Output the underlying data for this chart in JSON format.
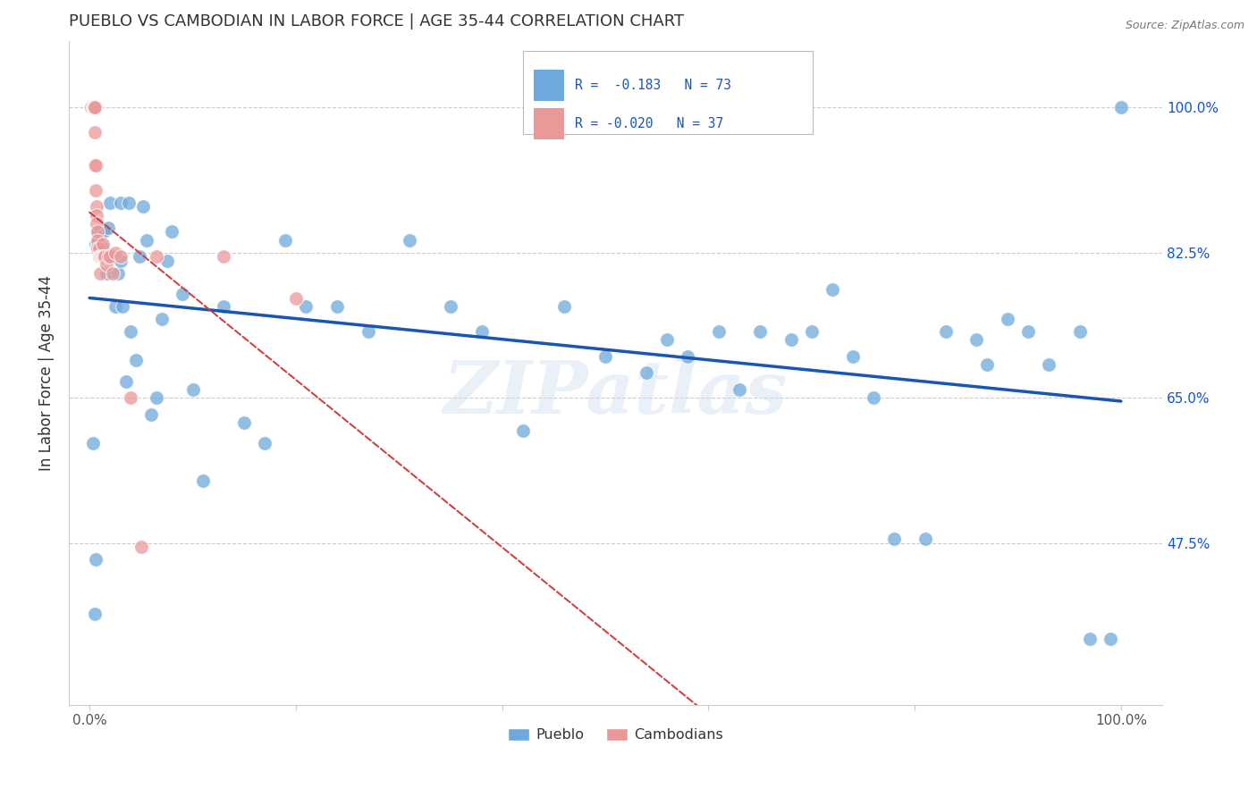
{
  "title": "PUEBLO VS CAMBODIAN IN LABOR FORCE | AGE 35-44 CORRELATION CHART",
  "source": "Source: ZipAtlas.com",
  "ylabel": "In Labor Force | Age 35-44",
  "legend_blue_label": "Pueblo",
  "legend_pink_label": "Cambodians",
  "blue_color": "#6fa8dc",
  "pink_color": "#ea9999",
  "trend_blue_color": "#1a56b0",
  "trend_pink_color": "#cc4444",
  "watermark": "ZIPatlas",
  "blue_x": [
    0.003,
    0.005,
    0.006,
    0.006,
    0.008,
    0.008,
    0.009,
    0.01,
    0.01,
    0.011,
    0.013,
    0.014,
    0.015,
    0.016,
    0.018,
    0.02,
    0.022,
    0.025,
    0.028,
    0.03,
    0.03,
    0.032,
    0.035,
    0.038,
    0.04,
    0.045,
    0.048,
    0.052,
    0.055,
    0.06,
    0.065,
    0.07,
    0.075,
    0.08,
    0.09,
    0.1,
    0.11,
    0.13,
    0.15,
    0.17,
    0.19,
    0.21,
    0.24,
    0.27,
    0.31,
    0.35,
    0.38,
    0.42,
    0.46,
    0.5,
    0.54,
    0.56,
    0.58,
    0.61,
    0.63,
    0.65,
    0.68,
    0.7,
    0.72,
    0.74,
    0.76,
    0.78,
    0.81,
    0.83,
    0.86,
    0.87,
    0.89,
    0.91,
    0.93,
    0.96,
    0.97,
    0.99,
    1.0
  ],
  "blue_y": [
    0.595,
    0.39,
    0.455,
    0.835,
    0.835,
    0.85,
    0.83,
    0.835,
    0.85,
    0.83,
    0.83,
    0.85,
    0.82,
    0.8,
    0.855,
    0.885,
    0.82,
    0.76,
    0.8,
    0.885,
    0.815,
    0.76,
    0.67,
    0.885,
    0.73,
    0.695,
    0.82,
    0.88,
    0.84,
    0.63,
    0.65,
    0.745,
    0.815,
    0.85,
    0.775,
    0.66,
    0.55,
    0.76,
    0.62,
    0.595,
    0.84,
    0.76,
    0.76,
    0.73,
    0.84,
    0.76,
    0.73,
    0.61,
    0.76,
    0.7,
    0.68,
    0.72,
    0.7,
    0.73,
    0.66,
    0.73,
    0.72,
    0.73,
    0.78,
    0.7,
    0.65,
    0.48,
    0.48,
    0.73,
    0.72,
    0.69,
    0.745,
    0.73,
    0.69,
    0.73,
    0.36,
    0.36,
    1.0
  ],
  "pink_x": [
    0.002,
    0.003,
    0.003,
    0.004,
    0.004,
    0.005,
    0.005,
    0.005,
    0.006,
    0.006,
    0.007,
    0.007,
    0.007,
    0.008,
    0.008,
    0.008,
    0.009,
    0.009,
    0.01,
    0.01,
    0.011,
    0.012,
    0.013,
    0.013,
    0.014,
    0.015,
    0.016,
    0.018,
    0.02,
    0.022,
    0.025,
    0.03,
    0.04,
    0.05,
    0.065,
    0.13,
    0.2
  ],
  "pink_y": [
    1.0,
    1.0,
    1.0,
    1.0,
    1.0,
    1.0,
    0.97,
    0.93,
    0.93,
    0.9,
    0.88,
    0.87,
    0.86,
    0.85,
    0.84,
    0.83,
    0.83,
    0.82,
    0.82,
    0.8,
    0.82,
    0.82,
    0.835,
    0.82,
    0.82,
    0.82,
    0.81,
    0.82,
    0.82,
    0.8,
    0.825,
    0.82,
    0.65,
    0.47,
    0.82,
    0.82,
    0.77
  ],
  "ylim_min": 0.28,
  "ylim_max": 1.08,
  "xlim_min": -0.02,
  "xlim_max": 1.04,
  "yticks": [
    0.475,
    0.65,
    0.825,
    1.0
  ],
  "ytick_labels_right": [
    "47.5%",
    "65.0%",
    "82.5%",
    "100.0%"
  ],
  "xtick_left_label": "0.0%",
  "xtick_right_label": "100.0%",
  "legend_text": [
    {
      "r": "R =  -0.183",
      "n": "N = 73",
      "color": "#6fa8dc"
    },
    {
      "r": "R = -0.020",
      "n": "N = 37",
      "color": "#ea9999"
    }
  ]
}
